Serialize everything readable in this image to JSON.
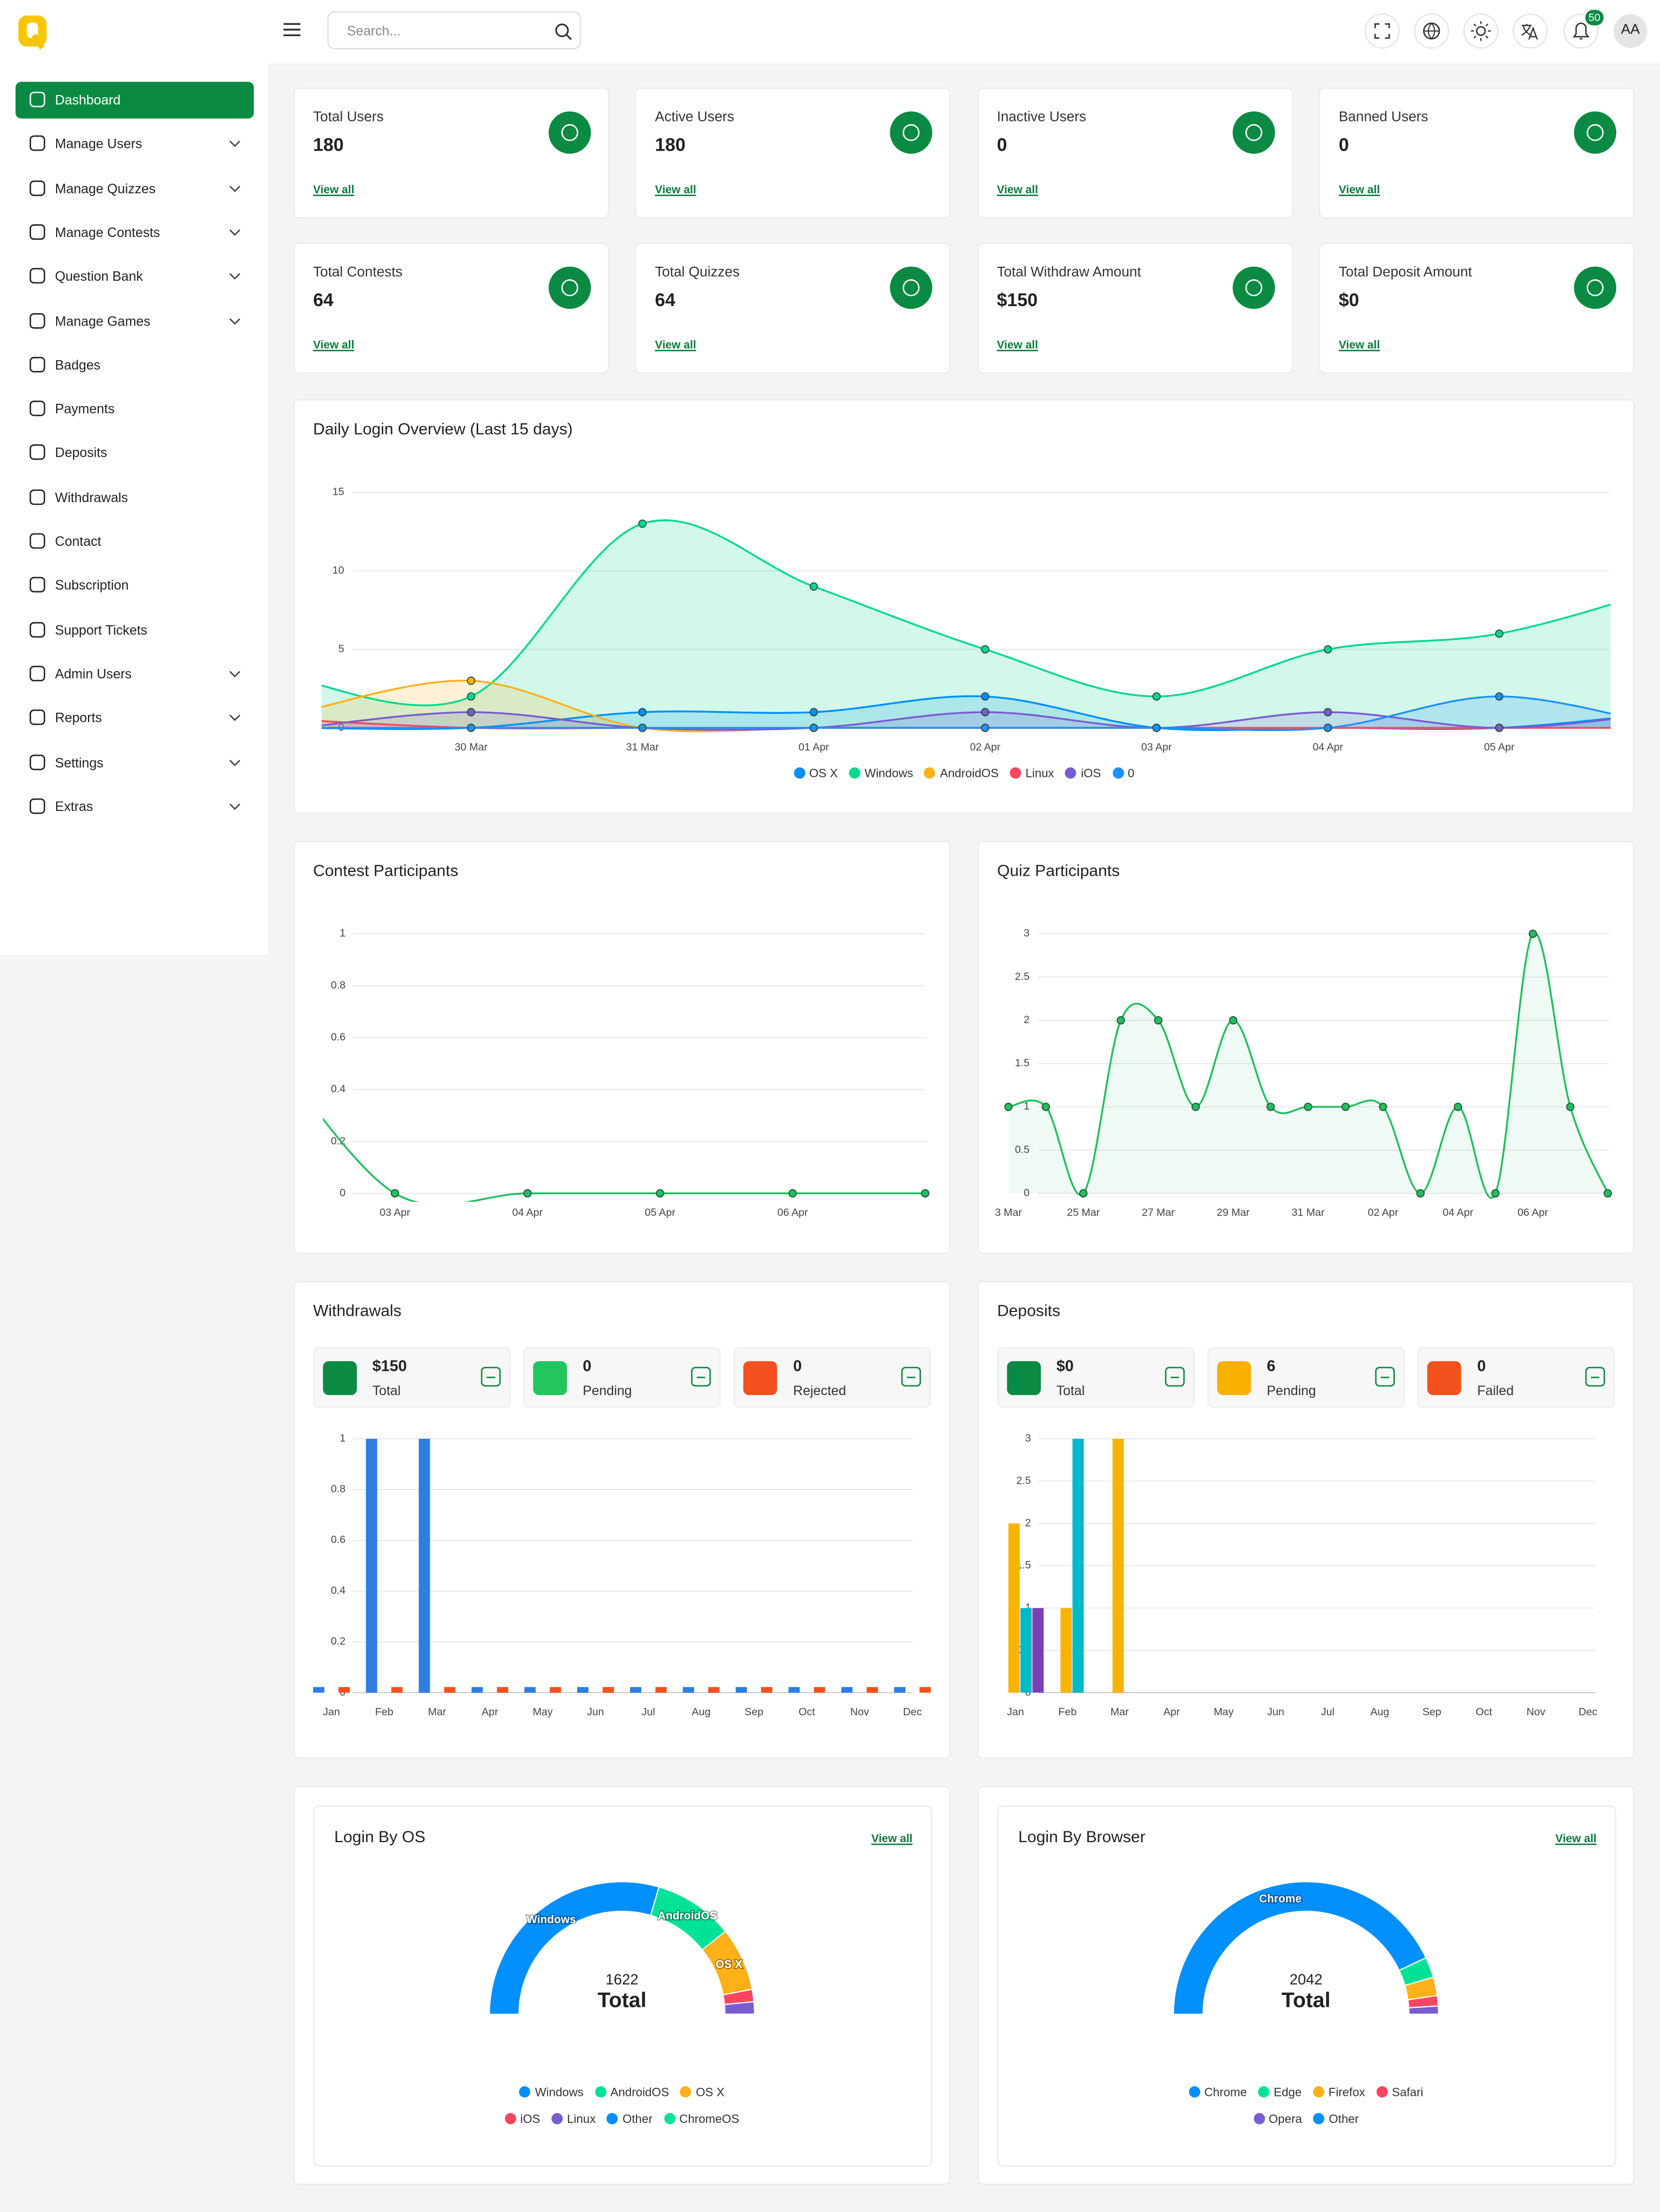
{
  "header": {
    "search_placeholder": "Search...",
    "notification_count": "50",
    "avatar": "AA"
  },
  "sidebar": {
    "items": [
      {
        "label": "Dashboard",
        "active": true
      },
      {
        "label": "Manage Users",
        "has_submenu": true
      },
      {
        "label": "Manage Quizzes",
        "has_submenu": true
      },
      {
        "label": "Manage Contests",
        "has_submenu": true
      },
      {
        "label": "Question Bank",
        "has_submenu": true
      },
      {
        "label": "Manage Games",
        "has_submenu": true
      },
      {
        "label": "Badges"
      },
      {
        "label": "Payments"
      },
      {
        "label": "Deposits"
      },
      {
        "label": "Withdrawals"
      },
      {
        "label": "Contact"
      },
      {
        "label": "Subscription"
      },
      {
        "label": "Support Tickets"
      },
      {
        "label": "Admin Users",
        "has_submenu": true
      },
      {
        "label": "Reports",
        "has_submenu": true
      },
      {
        "label": "Settings",
        "has_submenu": true
      },
      {
        "label": "Extras",
        "has_submenu": true
      }
    ]
  },
  "stat_cards": [
    {
      "label": "Total Users",
      "value": "180",
      "link": "View all"
    },
    {
      "label": "Active Users",
      "value": "180",
      "link": "View all"
    },
    {
      "label": "Inactive Users",
      "value": "0",
      "link": "View all"
    },
    {
      "label": "Banned Users",
      "value": "0",
      "link": "View all"
    },
    {
      "label": "Total Contests",
      "value": "64",
      "link": "View all"
    },
    {
      "label": "Total Quizzes",
      "value": "64",
      "link": "View all"
    },
    {
      "label": "Total Withdraw Amount",
      "value": "$150",
      "link": "View all"
    },
    {
      "label": "Total Deposit Amount",
      "value": "$0",
      "link": "View all"
    }
  ],
  "daily_login": {
    "type": "line",
    "title": "Daily Login Overview (Last 15 days)",
    "categories": [
      null,
      "30 Mar",
      "31 Mar",
      "01 Apr",
      "02 Apr",
      "03 Apr",
      "04 Apr",
      "05 Apr",
      null
    ],
    "ylim": [
      0,
      15
    ],
    "yticks": [
      0,
      5,
      10,
      15
    ],
    "area": true,
    "series": [
      {
        "name": "OS X",
        "color": "#008ffb",
        "values": [
          0,
          0,
          1,
          1,
          2,
          0,
          0,
          0,
          1
        ]
      },
      {
        "name": "Windows",
        "color": "#00d98b",
        "values": [
          3,
          2,
          13,
          9,
          5,
          2,
          5,
          6,
          9
        ]
      },
      {
        "name": "AndroidOS",
        "color": "#feb019",
        "values": [
          1,
          3,
          0,
          0,
          0,
          0,
          0,
          0,
          0
        ]
      },
      {
        "name": "Linux",
        "color": "#ff4560",
        "values": [
          0.5,
          0,
          0,
          0,
          0,
          0,
          0,
          0,
          0
        ]
      },
      {
        "name": "iOS",
        "color": "#775dd0",
        "values": [
          0,
          1,
          0,
          0,
          1,
          0,
          1,
          0,
          1
        ]
      },
      {
        "name": "0",
        "color": "#1e90ff",
        "values": [
          0,
          0,
          0,
          0,
          0,
          0,
          0,
          2,
          0
        ]
      }
    ]
  },
  "contest_participants": {
    "type": "line",
    "title": "Contest Participants",
    "categories": [
      null,
      "03 Apr",
      "04 Apr",
      "05 Apr",
      "06 Apr",
      null
    ],
    "values": [
      0.6,
      0,
      0,
      0,
      0,
      0
    ],
    "color": "#1fbf5f",
    "area": false,
    "ylim": [
      0,
      1
    ],
    "yticks": [
      0,
      0.2,
      0.4,
      0.6,
      0.8,
      1
    ]
  },
  "quiz_participants": {
    "type": "line",
    "title": "Quiz Participants",
    "categories": [
      "3 Mar",
      null,
      "25 Mar",
      null,
      "27 Mar",
      null,
      "29 Mar",
      null,
      "31 Mar",
      null,
      "02 Apr",
      null,
      "04 Apr",
      null,
      "06 Apr",
      null,
      null
    ],
    "values": [
      1,
      1,
      0,
      2,
      2,
      1,
      2,
      1,
      1,
      1,
      1,
      0,
      1,
      0,
      3,
      1,
      0
    ],
    "color": "#1fbf5f",
    "area": true,
    "ylim": [
      0,
      3
    ],
    "yticks": [
      0,
      0.5,
      1,
      1.5,
      2,
      2.5,
      3
    ]
  },
  "withdrawals": {
    "title": "Withdrawals",
    "summary": [
      {
        "value": "$150",
        "label": "Total",
        "color": "#0b8a44"
      },
      {
        "value": "0",
        "label": "Pending",
        "color": "#22c55e"
      },
      {
        "value": "0",
        "label": "Rejected",
        "color": "#f4511e"
      }
    ],
    "chart": {
      "type": "bar",
      "categories": [
        "Jan",
        "Feb",
        "Mar",
        "Apr",
        "May",
        "Jun",
        "Jul",
        "Aug",
        "Sep",
        "Oct",
        "Nov",
        "Dec"
      ],
      "ylim": [
        0,
        1
      ],
      "yticks": [
        0,
        0.2,
        0.4,
        0.6,
        0.8,
        1
      ],
      "series": [
        {
          "color": "#2f7de1",
          "values": [
            0,
            1,
            1,
            0,
            0,
            0,
            0,
            0,
            0,
            0,
            0,
            0
          ]
        },
        {
          "color": "#f4511e",
          "values": [
            0,
            0,
            0,
            0,
            0,
            0,
            0,
            0,
            0,
            0,
            0,
            0
          ]
        }
      ]
    }
  },
  "deposits": {
    "title": "Deposits",
    "summary": [
      {
        "value": "$0",
        "label": "Total",
        "color": "#0b8a44"
      },
      {
        "value": "6",
        "label": "Pending",
        "color": "#f9b000"
      },
      {
        "value": "0",
        "label": "Failed",
        "color": "#f4511e"
      }
    ],
    "chart": {
      "type": "bar",
      "categories": [
        "Jan",
        "Feb",
        "Mar",
        "Apr",
        "May",
        "Jun",
        "Jul",
        "Aug",
        "Sep",
        "Oct",
        "Nov",
        "Dec"
      ],
      "ylim": [
        0,
        3
      ],
      "yticks": [
        0,
        0.5,
        1,
        1.5,
        2,
        2.5,
        3
      ],
      "series": [
        {
          "color": "#f9b400",
          "values": [
            2,
            1,
            3,
            0,
            0,
            0,
            0,
            0,
            0,
            0,
            0,
            0
          ]
        },
        {
          "color": "#00b8c8",
          "values": [
            1,
            3,
            0,
            0,
            0,
            0,
            0,
            0,
            0,
            0,
            0,
            0
          ]
        },
        {
          "color": "#7b3fb5",
          "values": [
            1,
            0,
            0,
            0,
            0,
            0,
            0,
            0,
            0,
            0,
            0,
            0
          ]
        }
      ]
    }
  },
  "login_by_os": {
    "type": "donut",
    "title": "Login By OS",
    "link": "View all",
    "total": 1622,
    "total_label": "Total",
    "categories": [
      "Windows",
      "AndroidOS",
      "OS X",
      "iOS",
      "Linux",
      "Other",
      "ChromeOS"
    ],
    "values": [
      957,
      316,
      251,
      49,
      49,
      0,
      0
    ],
    "colors": [
      "#008ffb",
      "#00e396",
      "#feb019",
      "#ff4560",
      "#775dd0",
      "#008ffb",
      "#00e396"
    ]
  },
  "login_by_browser": {
    "type": "donut",
    "title": "Login By Browser",
    "link": "View all",
    "total": 2042,
    "total_label": "Total",
    "categories": [
      "Chrome",
      "Edge",
      "Firefox",
      "Safari",
      "Opera",
      "Other"
    ],
    "values": [
      1756,
      102,
      92,
      51,
      41,
      0
    ],
    "colors": [
      "#008ffb",
      "#00e396",
      "#feb019",
      "#ff4560",
      "#775dd0",
      "#008ffb"
    ]
  }
}
